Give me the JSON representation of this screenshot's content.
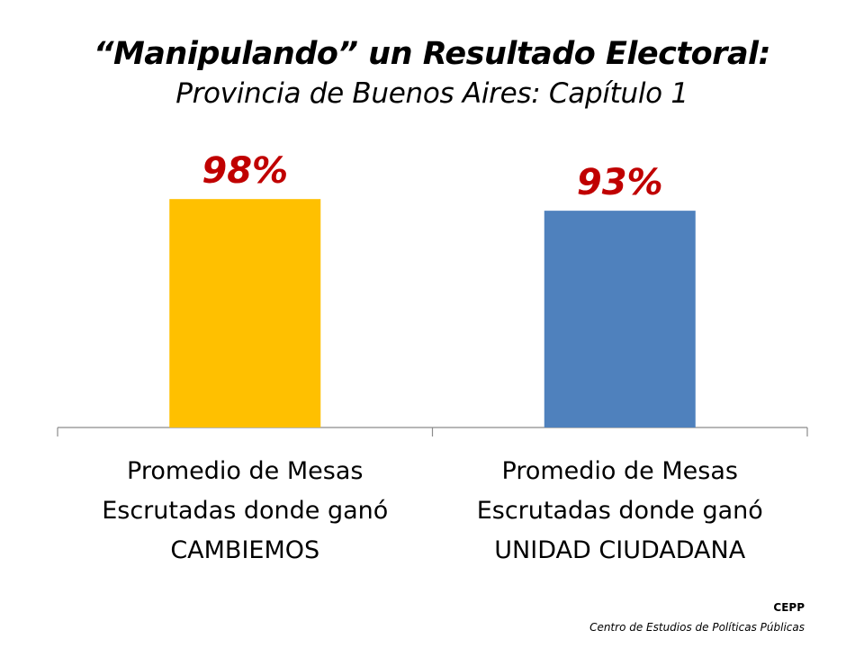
{
  "title": {
    "line1": "“Manipulando” un Resultado Electoral:",
    "line2": "Provincia de Buenos Aires: Capítulo 1"
  },
  "chart_data": {
    "type": "bar",
    "categories": [
      [
        "Promedio de Mesas",
        "Escrutadas donde ganó",
        "CAMBIEMOS"
      ],
      [
        "Promedio de Mesas",
        "Escrutadas donde ganó",
        "UNIDAD CIUDADANA"
      ]
    ],
    "values": [
      98,
      93
    ],
    "data_labels": [
      "98%",
      "93%"
    ],
    "colors": [
      "#FFC000",
      "#4F81BD"
    ],
    "label_color": "#C00000",
    "ylim": [
      0,
      100
    ],
    "grid": false,
    "legend": "none"
  },
  "footer": {
    "org": "CEPP",
    "org_full": "Centro de Estudios de Políticas Públicas"
  }
}
